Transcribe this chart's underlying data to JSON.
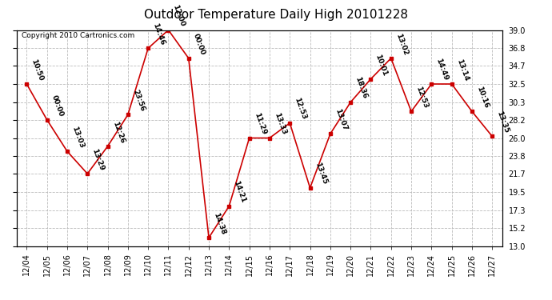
{
  "title": "Outdoor Temperature Daily High 20101228",
  "copyright": "Copyright 2010 Cartronics.com",
  "dates": [
    "12/04",
    "12/05",
    "12/06",
    "12/07",
    "12/08",
    "12/09",
    "12/10",
    "12/11",
    "12/12",
    "12/13",
    "12/14",
    "12/15",
    "12/16",
    "12/17",
    "12/18",
    "12/19",
    "12/20",
    "12/21",
    "12/22",
    "12/23",
    "12/24",
    "12/25",
    "12/26",
    "12/27"
  ],
  "values": [
    32.5,
    28.2,
    24.4,
    21.7,
    25.0,
    28.8,
    36.8,
    39.0,
    35.6,
    14.0,
    17.8,
    26.0,
    26.0,
    27.8,
    20.0,
    26.5,
    30.3,
    33.1,
    35.6,
    29.2,
    32.5,
    32.5,
    29.2,
    26.2
  ],
  "time_labels": [
    "10:50",
    "00:00",
    "13:03",
    "13:29",
    "12:26",
    "23:56",
    "14:46",
    "12:00",
    "00:00",
    "14:38",
    "14:21",
    "11:29",
    "13:33",
    "12:53",
    "13:45",
    "13:07",
    "18:36",
    "10:01",
    "13:02",
    "12:53",
    "14:49",
    "13:14",
    "10:16",
    "13:35"
  ],
  "ylim_min": 13.0,
  "ylim_max": 39.0,
  "yticks": [
    13.0,
    15.2,
    17.3,
    19.5,
    21.7,
    23.8,
    26.0,
    28.2,
    30.3,
    32.5,
    34.7,
    36.8,
    39.0
  ],
  "line_color": "#cc0000",
  "marker_color": "#cc0000",
  "bg_color": "#ffffff",
  "grid_color": "#bbbbbb",
  "title_fontsize": 11,
  "annotation_fontsize": 6.5,
  "tick_fontsize": 7,
  "copyright_fontsize": 6.5
}
